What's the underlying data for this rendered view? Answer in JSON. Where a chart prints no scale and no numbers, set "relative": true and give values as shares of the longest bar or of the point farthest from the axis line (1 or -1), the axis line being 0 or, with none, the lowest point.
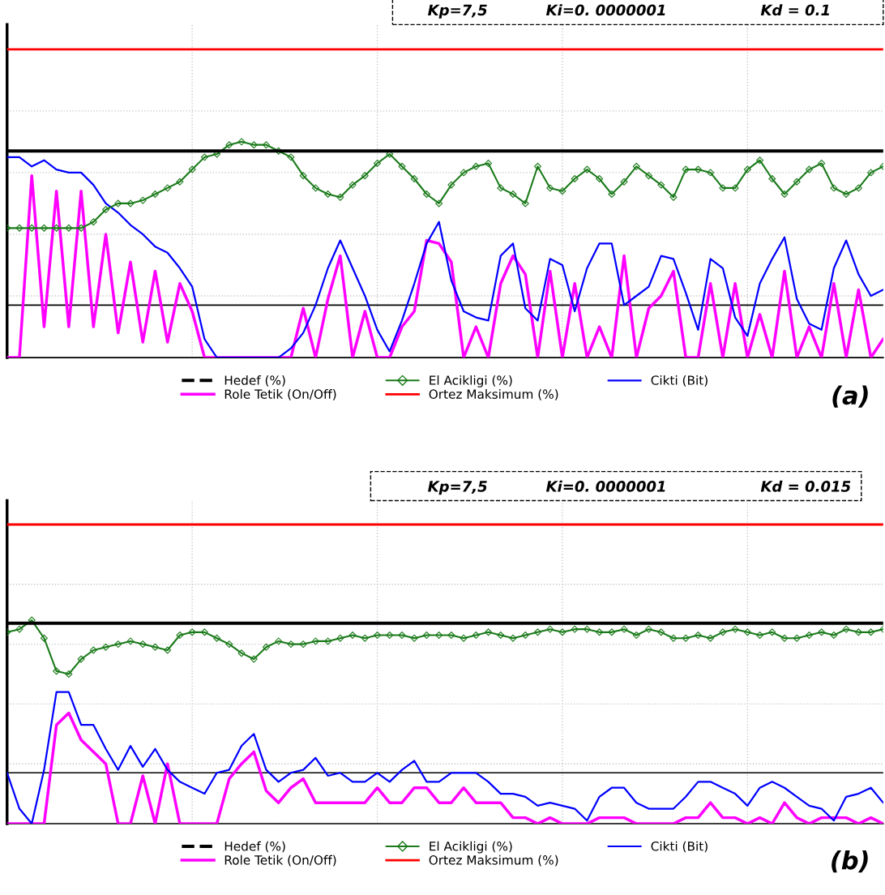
{
  "chart_data": [
    {
      "type": "line",
      "relative": true,
      "legend": "bottom",
      "grid": true,
      "line_style": "solid",
      "categories": [
        null,
        null,
        null,
        null,
        null,
        null,
        null,
        null,
        null,
        null,
        null,
        null,
        null,
        null,
        null,
        null,
        null,
        null,
        null,
        null,
        null,
        null,
        null,
        null,
        null,
        null,
        null,
        null,
        null,
        null,
        null,
        null,
        null,
        null,
        null,
        null,
        null,
        null,
        null,
        null,
        null,
        null,
        null,
        null,
        null,
        null,
        null,
        null,
        null,
        null,
        null,
        null,
        null,
        null,
        null,
        null,
        null,
        null,
        null,
        null,
        null,
        null,
        null,
        null,
        null,
        null,
        null,
        null,
        null,
        null,
        null,
        null
      ],
      "annotations": [
        "Kp=7,5",
        "Ki=0. 0000001",
        "Kd = 0.1",
        "(a)"
      ],
      "ref_lines": [
        {
          "axis": "y",
          "value": 0.17,
          "color": "#000000"
        }
      ],
      "series": [
        {
          "name": "Hedef (%)",
          "color": "#000000",
          "marker": "none",
          "values": [
            0.67,
            0.67,
            0.67,
            0.67,
            0.67,
            0.67,
            0.67,
            0.67,
            0.67,
            0.67,
            0.67,
            0.67,
            0.67,
            0.67,
            0.67,
            0.67,
            0.67,
            0.67,
            0.67,
            0.67,
            0.67,
            0.67,
            0.67,
            0.67,
            0.67,
            0.67,
            0.67,
            0.67,
            0.67,
            0.67,
            0.67,
            0.67,
            0.67,
            0.67,
            0.67,
            0.67,
            0.67,
            0.67,
            0.67,
            0.67,
            0.67,
            0.67,
            0.67,
            0.67,
            0.67,
            0.67,
            0.67,
            0.67,
            0.67,
            0.67,
            0.67,
            0.67,
            0.67,
            0.67,
            0.67,
            0.67,
            0.67,
            0.67,
            0.67,
            0.67,
            0.67,
            0.67,
            0.67,
            0.67,
            0.67,
            0.67,
            0.67,
            0.67,
            0.67,
            0.67,
            0.67,
            0.67
          ]
        },
        {
          "name": "El Acikligi (%)",
          "color": "#1a7a1a",
          "marker": "diamond",
          "values": [
            0.42,
            0.42,
            0.42,
            0.42,
            0.42,
            0.42,
            0.42,
            0.44,
            0.48,
            0.5,
            0.5,
            0.51,
            0.53,
            0.55,
            0.57,
            0.61,
            0.65,
            0.66,
            0.69,
            0.7,
            0.69,
            0.69,
            0.67,
            0.65,
            0.59,
            0.55,
            0.53,
            0.52,
            0.56,
            0.59,
            0.63,
            0.66,
            0.62,
            0.58,
            0.53,
            0.5,
            0.56,
            0.6,
            0.62,
            0.63,
            0.55,
            0.53,
            0.5,
            0.62,
            0.55,
            0.54,
            0.58,
            0.61,
            0.58,
            0.53,
            0.57,
            0.62,
            0.59,
            0.56,
            0.52,
            0.61,
            0.61,
            0.6,
            0.55,
            0.55,
            0.61,
            0.64,
            0.58,
            0.53,
            0.57,
            0.61,
            0.63,
            0.55,
            0.53,
            0.55,
            0.6,
            0.62
          ]
        },
        {
          "name": "Cikti (Bit)",
          "color": "#0000ff",
          "marker": "none",
          "values": [
            0.65,
            0.65,
            0.62,
            0.64,
            0.61,
            0.6,
            0.6,
            0.56,
            0.5,
            0.47,
            0.43,
            0.4,
            0.36,
            0.34,
            0.29,
            0.23,
            0.06,
            0,
            0,
            0,
            0,
            0,
            0,
            0.03,
            0.08,
            0.17,
            0.29,
            0.38,
            0.29,
            0.2,
            0.09,
            0.02,
            0.12,
            0.24,
            0.37,
            0.44,
            0.25,
            0.15,
            0.13,
            0.12,
            0.33,
            0.37,
            0.16,
            0.12,
            0.32,
            0.3,
            0.15,
            0.29,
            0.37,
            0.37,
            0.17,
            0.2,
            0.23,
            0.33,
            0.32,
            0.21,
            0.09,
            0.32,
            0.29,
            0.13,
            0.07,
            0.24,
            0.32,
            0.39,
            0.19,
            0.11,
            0.09,
            0.29,
            0.38,
            0.27,
            0.2,
            0.22
          ]
        },
        {
          "name": "Role Tetik (On/Off)",
          "color": "#ff00ff",
          "marker": "none",
          "values": [
            0,
            0,
            0.59,
            0.1,
            0.54,
            0.1,
            0.54,
            0.1,
            0.4,
            0.08,
            0.31,
            0.05,
            0.28,
            0.05,
            0.24,
            0.15,
            0,
            0,
            0,
            0,
            0,
            0,
            0,
            0,
            0.16,
            0,
            0.19,
            0.33,
            0,
            0.15,
            0,
            0,
            0.1,
            0.15,
            0.38,
            0.37,
            0.31,
            0,
            0.1,
            0,
            0.24,
            0.33,
            0.27,
            0,
            0.28,
            0,
            0.24,
            0,
            0.1,
            0,
            0.33,
            0,
            0.16,
            0.2,
            0.28,
            0,
            0,
            0.24,
            0,
            0.24,
            0,
            0.14,
            0,
            0.28,
            0,
            0.1,
            0,
            0.24,
            0,
            0.22,
            0,
            0.06
          ]
        },
        {
          "name": "Ortez Maksimum (%)",
          "color": "#ff0000",
          "marker": "none",
          "values": [
            1,
            1,
            1,
            1,
            1,
            1,
            1,
            1,
            1,
            1,
            1,
            1,
            1,
            1,
            1,
            1,
            1,
            1,
            1,
            1,
            1,
            1,
            1,
            1,
            1,
            1,
            1,
            1,
            1,
            1,
            1,
            1,
            1,
            1,
            1,
            1,
            1,
            1,
            1,
            1,
            1,
            1,
            1,
            1,
            1,
            1,
            1,
            1,
            1,
            1,
            1,
            1,
            1,
            1,
            1,
            1,
            1,
            1,
            1,
            1,
            1,
            1,
            1,
            1,
            1,
            1,
            1,
            1,
            1,
            1,
            1,
            1
          ]
        }
      ]
    },
    {
      "type": "line",
      "relative": true,
      "legend": "bottom",
      "grid": true,
      "line_style": "solid",
      "categories": [
        null,
        null,
        null,
        null,
        null,
        null,
        null,
        null,
        null,
        null,
        null,
        null,
        null,
        null,
        null,
        null,
        null,
        null,
        null,
        null,
        null,
        null,
        null,
        null,
        null,
        null,
        null,
        null,
        null,
        null,
        null,
        null,
        null,
        null,
        null,
        null,
        null,
        null,
        null,
        null,
        null,
        null,
        null,
        null,
        null,
        null,
        null,
        null,
        null,
        null,
        null,
        null,
        null,
        null,
        null,
        null,
        null,
        null,
        null,
        null,
        null,
        null,
        null,
        null,
        null,
        null,
        null,
        null,
        null,
        null,
        null,
        null
      ],
      "annotations": [
        "Kp=7,5",
        "Ki=0. 0000001",
        "Kd = 0.015",
        "(b)"
      ],
      "ref_lines": [
        {
          "axis": "y",
          "value": 0.17,
          "color": "#000000"
        }
      ],
      "series": [
        {
          "name": "Hedef (%)",
          "color": "#000000",
          "marker": "none",
          "values": [
            0.67,
            0.67,
            0.67,
            0.67,
            0.67,
            0.67,
            0.67,
            0.67,
            0.67,
            0.67,
            0.67,
            0.67,
            0.67,
            0.67,
            0.67,
            0.67,
            0.67,
            0.67,
            0.67,
            0.67,
            0.67,
            0.67,
            0.67,
            0.67,
            0.67,
            0.67,
            0.67,
            0.67,
            0.67,
            0.67,
            0.67,
            0.67,
            0.67,
            0.67,
            0.67,
            0.67,
            0.67,
            0.67,
            0.67,
            0.67,
            0.67,
            0.67,
            0.67,
            0.67,
            0.67,
            0.67,
            0.67,
            0.67,
            0.67,
            0.67,
            0.67,
            0.67,
            0.67,
            0.67,
            0.67,
            0.67,
            0.67,
            0.67,
            0.67,
            0.67,
            0.67,
            0.67,
            0.67,
            0.67,
            0.67,
            0.67,
            0.67,
            0.67,
            0.67,
            0.67,
            0.67,
            0.67
          ]
        },
        {
          "name": "El Acikligi (%)",
          "color": "#1a7a1a",
          "marker": "diamond",
          "values": [
            0.64,
            0.65,
            0.68,
            0.62,
            0.51,
            0.5,
            0.55,
            0.58,
            0.59,
            0.6,
            0.61,
            0.6,
            0.59,
            0.58,
            0.63,
            0.64,
            0.64,
            0.62,
            0.6,
            0.57,
            0.55,
            0.59,
            0.61,
            0.6,
            0.6,
            0.61,
            0.61,
            0.62,
            0.63,
            0.62,
            0.63,
            0.63,
            0.63,
            0.62,
            0.63,
            0.63,
            0.63,
            0.62,
            0.63,
            0.64,
            0.63,
            0.62,
            0.63,
            0.64,
            0.65,
            0.64,
            0.65,
            0.65,
            0.64,
            0.64,
            0.65,
            0.63,
            0.65,
            0.64,
            0.62,
            0.62,
            0.63,
            0.62,
            0.64,
            0.65,
            0.64,
            0.63,
            0.64,
            0.62,
            0.62,
            0.63,
            0.64,
            0.63,
            0.65,
            0.64,
            0.64,
            0.65
          ]
        },
        {
          "name": "Cikti (Bit)",
          "color": "#0000ff",
          "marker": "none",
          "values": [
            0.17,
            0.05,
            0.0,
            0.18,
            0.44,
            0.44,
            0.33,
            0.33,
            0.25,
            0.18,
            0.26,
            0.19,
            0.25,
            0.18,
            0.14,
            0.12,
            0.1,
            0.17,
            0.18,
            0.26,
            0.3,
            0.18,
            0.14,
            0.17,
            0.18,
            0.22,
            0.16,
            0.17,
            0.14,
            0.14,
            0.17,
            0.14,
            0.18,
            0.21,
            0.14,
            0.14,
            0.17,
            0.17,
            0.17,
            0.14,
            0.1,
            0.1,
            0.09,
            0.06,
            0.07,
            0.06,
            0.05,
            0.01,
            0.09,
            0.12,
            0.12,
            0.07,
            0.05,
            0.05,
            0.05,
            0.09,
            0.14,
            0.14,
            0.12,
            0.1,
            0.06,
            0.12,
            0.14,
            0.12,
            0.09,
            0.06,
            0.05,
            0.01,
            0.09,
            0.1,
            0.12,
            0.07
          ]
        },
        {
          "name": "Role Tetik (On/Off)",
          "color": "#ff00ff",
          "marker": "none",
          "values": [
            0,
            0,
            0,
            0,
            0.33,
            0.37,
            0.28,
            0.24,
            0.2,
            0,
            0,
            0.16,
            0,
            0.2,
            0,
            0,
            0,
            0,
            0.15,
            0.2,
            0.24,
            0.11,
            0.07,
            0.12,
            0.15,
            0.07,
            0.07,
            0.07,
            0.07,
            0.07,
            0.12,
            0.07,
            0.07,
            0.12,
            0.12,
            0.07,
            0.07,
            0.12,
            0.07,
            0.07,
            0.07,
            0.02,
            0.02,
            0,
            0.02,
            0,
            0,
            0,
            0.02,
            0.02,
            0.02,
            0,
            0,
            0,
            0,
            0.02,
            0.02,
            0.07,
            0.02,
            0.02,
            0,
            0.02,
            0,
            0.07,
            0.02,
            0,
            0.02,
            0.02,
            0.02,
            0,
            0.02,
            0
          ]
        },
        {
          "name": "Ortez Maksimum (%)",
          "color": "#ff0000",
          "marker": "none",
          "values": [
            1,
            1,
            1,
            1,
            1,
            1,
            1,
            1,
            1,
            1,
            1,
            1,
            1,
            1,
            1,
            1,
            1,
            1,
            1,
            1,
            1,
            1,
            1,
            1,
            1,
            1,
            1,
            1,
            1,
            1,
            1,
            1,
            1,
            1,
            1,
            1,
            1,
            1,
            1,
            1,
            1,
            1,
            1,
            1,
            1,
            1,
            1,
            1,
            1,
            1,
            1,
            1,
            1,
            1,
            1,
            1,
            1,
            1,
            1,
            1,
            1,
            1,
            1,
            1,
            1,
            1,
            1,
            1,
            1,
            1,
            1,
            1
          ]
        }
      ]
    }
  ]
}
